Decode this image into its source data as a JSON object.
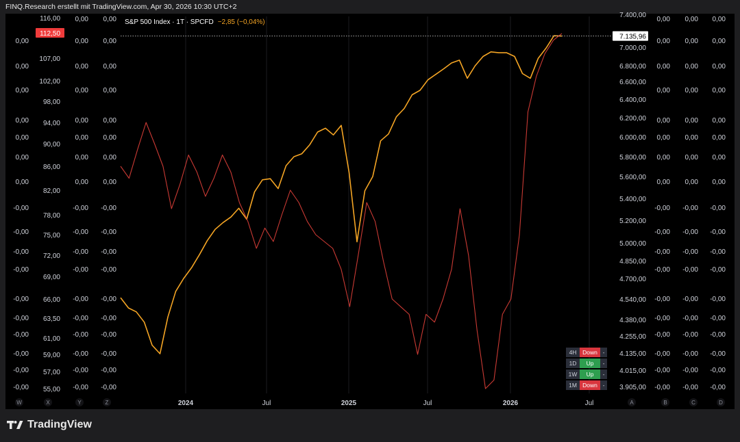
{
  "header": {
    "title": "FINQ.Research erstellt mit TradingView.com, Apr 30, 2026 10:30 UTC+2"
  },
  "legend": {
    "symbol": "S&P 500 Index · 1T · SPCFD",
    "change": "−2,85 (−0,04%)"
  },
  "footer": {
    "brand": "TradingView"
  },
  "colors": {
    "spx": "#f5a524",
    "secondary": "#e0403a",
    "bg": "#000000"
  },
  "chart_data": {
    "type": "line",
    "x_ticks": [
      "2024",
      "Jul",
      "2025",
      "Jul",
      "2026",
      "Jul"
    ],
    "x_tick_bold": [
      true,
      false,
      true,
      false,
      true,
      false
    ],
    "right_axis": {
      "ticks": [
        "7.400,00",
        "7.000,00",
        "6.800,00",
        "6.600,00",
        "6.400,00",
        "6.200,00",
        "6.000,00",
        "5.800,00",
        "5.600,00",
        "5.400,00",
        "5.200,00",
        "5.000,00",
        "4.850,00",
        "4.700,00",
        "4.540,00",
        "4.380,00",
        "4.255,00",
        "4.135,00",
        "4.015,00",
        "3.905,00"
      ],
      "last_price": "7.135,96"
    },
    "left_axis": {
      "ticks": [
        "116,00",
        "107,00",
        "102,00",
        "98,00",
        "94,00",
        "90,00",
        "86,00",
        "82,00",
        "78,00",
        "75,00",
        "72,00",
        "69,00",
        "66,00",
        "63,50",
        "61,00",
        "59,00",
        "57,00",
        "55,00"
      ],
      "last_value": "112,50"
    },
    "zero_axes": {
      "positive_labels": [
        "0,00",
        "0,00",
        "0,00",
        "0,00",
        "0,00",
        "0,00",
        "0,00",
        "0,00"
      ],
      "negative_labels": [
        "-0,00",
        "-0,00",
        "-0,00",
        "-0,00",
        "-0,00",
        "-0,00",
        "-0,00",
        "-0,00",
        "-0,00",
        "-0,00",
        "-0,00",
        "-0,00"
      ],
      "top_label": "0,00"
    },
    "axis_letters_left": [
      "W",
      "X",
      "Y",
      "Z"
    ],
    "axis_letters_right": [
      "A",
      "B",
      "C",
      "D"
    ],
    "series": [
      {
        "name": "S&P 500 Index",
        "values": [
          4550,
          4470,
          4440,
          4360,
          4190,
          4130,
          4400,
          4600,
          4700,
          4790,
          4900,
          5020,
          5120,
          5180,
          5230,
          5310,
          5210,
          5460,
          5570,
          5580,
          5490,
          5710,
          5800,
          5830,
          5920,
          6050,
          6090,
          6020,
          6120,
          5640,
          5010,
          5470,
          5600,
          5960,
          6030,
          6210,
          6300,
          6450,
          6500,
          6620,
          6690,
          6760,
          6830,
          6860,
          6640,
          6800,
          6900,
          6950,
          6940,
          6940,
          6900,
          6700,
          6640,
          6880,
          6990,
          7140,
          7135.96
        ]
      },
      {
        "values": [
          86,
          84,
          89,
          94,
          90,
          86,
          79,
          83,
          88,
          85,
          81,
          84,
          88,
          85,
          80,
          77,
          73,
          76,
          74,
          78,
          82,
          80,
          77,
          75,
          74,
          73,
          70,
          65,
          72,
          80,
          77,
          71,
          66,
          65,
          64,
          59,
          64,
          63,
          66,
          70,
          79,
          72,
          62,
          54,
          56,
          64,
          66,
          75,
          96,
          103,
          108,
          111,
          112.5
        ]
      }
    ],
    "signals": [
      {
        "tf": "4H",
        "label": "Down",
        "state": "down",
        "dash": "-"
      },
      {
        "tf": "1D",
        "label": "Up",
        "state": "up",
        "dash": "-"
      },
      {
        "tf": "1W",
        "label": "Up",
        "state": "up",
        "dash": "-"
      },
      {
        "tf": "1M",
        "label": "Down",
        "state": "down",
        "dash": "-"
      }
    ]
  }
}
